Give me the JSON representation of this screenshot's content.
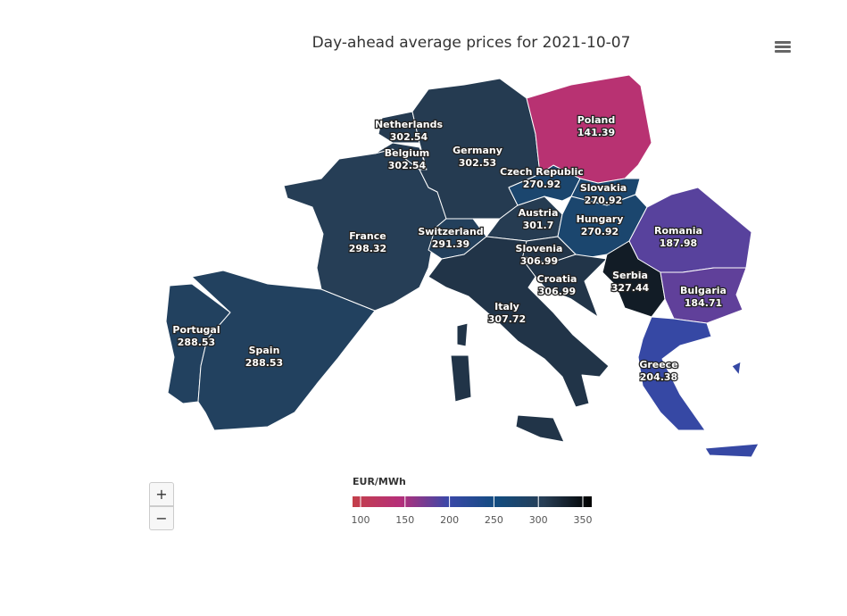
{
  "title": "Day-ahead average prices for 2021-10-07",
  "regions": [
    {
      "name": "Portugal",
      "value": 288.53
    },
    {
      "name": "Spain",
      "value": 288.53
    },
    {
      "name": "France",
      "value": 298.32
    },
    {
      "name": "Belgium",
      "value": 302.54
    },
    {
      "name": "Netherlands",
      "value": 302.54
    },
    {
      "name": "Germany",
      "value": 302.53
    },
    {
      "name": "Switzerland",
      "value": 291.39
    },
    {
      "name": "Austria",
      "value": 301.7
    },
    {
      "name": "Czech Republic",
      "value": 270.92
    },
    {
      "name": "Poland",
      "value": 141.39
    },
    {
      "name": "Slovakia",
      "value": 270.92
    },
    {
      "name": "Hungary",
      "value": 270.92
    },
    {
      "name": "Slovenia",
      "value": 306.99
    },
    {
      "name": "Croatia",
      "value": 306.99
    },
    {
      "name": "Italy",
      "value": 307.72
    },
    {
      "name": "Serbia",
      "value": 327.44
    },
    {
      "name": "Romania",
      "value": 187.98
    },
    {
      "name": "Bulgaria",
      "value": 184.71
    },
    {
      "name": "Greece",
      "value": 204.38
    }
  ],
  "color_axis": {
    "title": "EUR/MWh",
    "min": 100,
    "max": 350,
    "ticks": [
      100,
      150,
      200,
      250,
      300,
      350
    ],
    "colors": [
      "#c4404a",
      "#b52f7a",
      "#3a48a8",
      "#124c80",
      "#273e55",
      "#000000"
    ]
  },
  "zoom": {
    "in": "+",
    "out": "−"
  }
}
